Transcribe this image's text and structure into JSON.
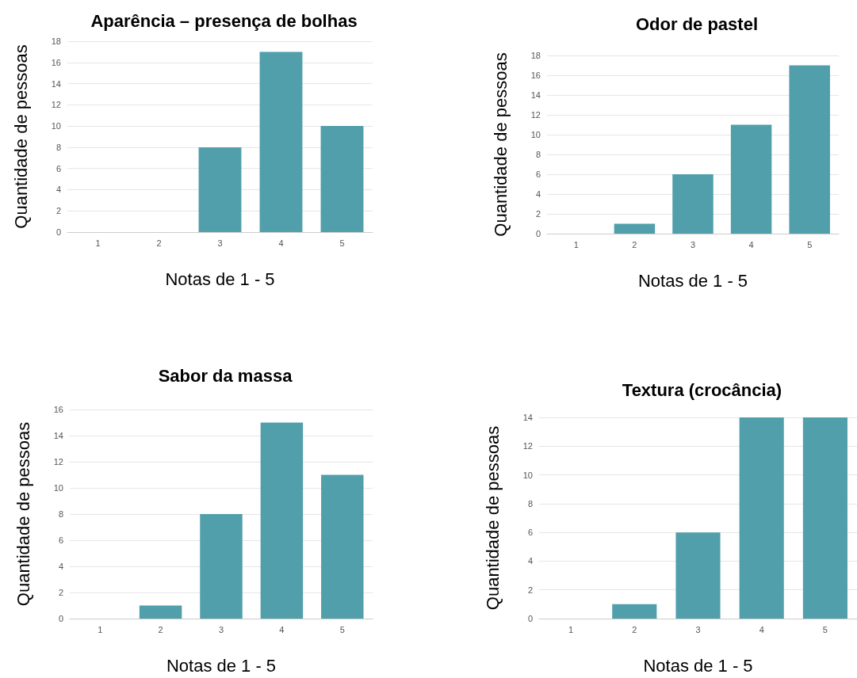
{
  "chart_data": [
    {
      "type": "bar",
      "title": "Aparência – presença de bolhas",
      "xlabel": "Notas de 1 - 5",
      "ylabel": "Quantidade de pessoas",
      "categories": [
        "1",
        "2",
        "3",
        "4",
        "5"
      ],
      "values": [
        0,
        0,
        8,
        17,
        10
      ],
      "color": "#519fab",
      "ylim": [
        0,
        18
      ],
      "yticks": [
        0,
        2,
        4,
        6,
        8,
        10,
        12,
        14,
        16,
        18
      ],
      "grid": "y"
    },
    {
      "type": "bar",
      "title": "Odor de pastel",
      "xlabel": "Notas de 1 - 5",
      "ylabel": "Quantidade de pessoas",
      "categories": [
        "1",
        "2",
        "3",
        "4",
        "5"
      ],
      "values": [
        0,
        1,
        6,
        11,
        17
      ],
      "color": "#519fab",
      "ylim": [
        0,
        18
      ],
      "yticks": [
        0,
        2,
        4,
        6,
        8,
        10,
        12,
        14,
        16,
        18
      ],
      "grid": "y"
    },
    {
      "type": "bar",
      "title": "Sabor da massa",
      "xlabel": "Notas de 1 - 5",
      "ylabel": "Quantidade de pessoas",
      "categories": [
        "1",
        "2",
        "3",
        "4",
        "5"
      ],
      "values": [
        0,
        1,
        8,
        15,
        11
      ],
      "color": "#519fab",
      "ylim": [
        0,
        16
      ],
      "yticks": [
        0,
        2,
        4,
        6,
        8,
        10,
        12,
        14,
        16
      ],
      "grid": "y"
    },
    {
      "type": "bar",
      "title": "Textura (crocância)",
      "xlabel": "Notas de 1 - 5",
      "ylabel": "Quantidade de pessoas",
      "categories": [
        "1",
        "2",
        "3",
        "4",
        "5"
      ],
      "values": [
        0,
        1,
        6,
        14,
        14
      ],
      "color": "#519fab",
      "ylim": [
        0,
        14
      ],
      "yticks": [
        0,
        2,
        4,
        6,
        8,
        10,
        12,
        14
      ],
      "grid": "y"
    }
  ]
}
